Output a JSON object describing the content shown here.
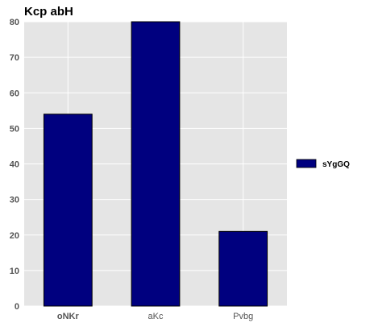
{
  "chart_data": {
    "type": "bar",
    "title": "Kcp abH",
    "xlabel": "",
    "ylabel": "",
    "categories": [
      "oNKr",
      "aKc",
      "Pvbg"
    ],
    "series": [
      {
        "name": "sYgGQ",
        "values": [
          54,
          80,
          21
        ],
        "color": "#00007f"
      }
    ],
    "ylim": [
      0,
      80
    ],
    "yticks": [
      0,
      10,
      20,
      30,
      40,
      50,
      60,
      70,
      80
    ],
    "grid": true,
    "legend_position": "right",
    "background_color": "#e5e5e5",
    "grid_color": "#ffffff"
  }
}
